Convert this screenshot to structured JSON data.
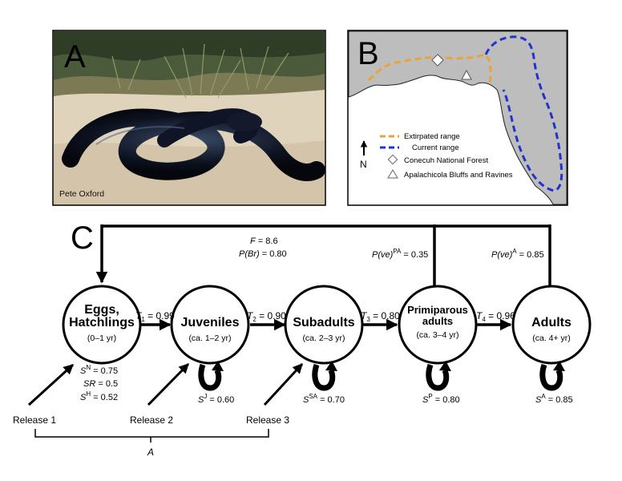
{
  "panels": {
    "a": {
      "letter": "A",
      "credit": "Pete Oxford"
    },
    "b": {
      "letter": "B",
      "legend": {
        "extirpated": "Extirpated range",
        "current": "Current range",
        "conecuh": "Conecuh National Forest",
        "apalachicola": "Apalachicola Bluffs and Ravines"
      },
      "north": "N",
      "colors": {
        "extirpated": "#E8A33A",
        "current": "#2233CC",
        "land": "#BDBDBD"
      }
    },
    "c": {
      "letter": "C"
    }
  },
  "stages": [
    {
      "name": [
        "Eggs,",
        "Hatchlings"
      ],
      "age": "(0–1 yr)"
    },
    {
      "name": [
        "Juveniles"
      ],
      "age": "(ca. 1–2 yr)"
    },
    {
      "name": [
        "Subadults"
      ],
      "age": "(ca. 2–3 yr)"
    },
    {
      "name": [
        "Primiparous",
        "adults"
      ],
      "age": "(ca. 3–4 yr)"
    },
    {
      "name": [
        "Adults"
      ],
      "age": "(ca. 4+ yr)"
    }
  ],
  "transitions": [
    {
      "sym": "T",
      "sub": "1",
      "val": " = 0.99"
    },
    {
      "sym": "T",
      "sub": "2",
      "val": " = 0.90"
    },
    {
      "sym": "T",
      "sub": "3",
      "val": " = 0.80"
    },
    {
      "sym": "T",
      "sub": "4",
      "val": " = 0.96"
    }
  ],
  "survival": [
    {
      "sup": "J",
      "val": " = 0.60"
    },
    {
      "sup": "SA",
      "val": " = 0.70"
    },
    {
      "sup": "P",
      "val": " = 0.80"
    },
    {
      "sup": "A",
      "val": " = 0.85"
    }
  ],
  "egg_params": [
    {
      "base": "S",
      "sup": "N",
      "val": " = 0.75"
    },
    {
      "base": "SR",
      "sup": "",
      "val": " = 0.5"
    },
    {
      "base": "S",
      "sup": "H",
      "val": " = 0.52"
    }
  ],
  "fecundity": {
    "F": {
      "sym": "F",
      "val": " = 8.6"
    },
    "PBr": {
      "sym": "P(Br)",
      "val": " = 0.80"
    },
    "PvePA": {
      "sym": "P(ve)",
      "sup": "PA",
      "val": " = 0.35"
    },
    "PveA": {
      "sym": "P(ve)",
      "sup": "A",
      "val": " = 0.85"
    }
  },
  "releases": [
    "Release 1",
    "Release 2",
    "Release 3"
  ],
  "bracket_label": "A"
}
